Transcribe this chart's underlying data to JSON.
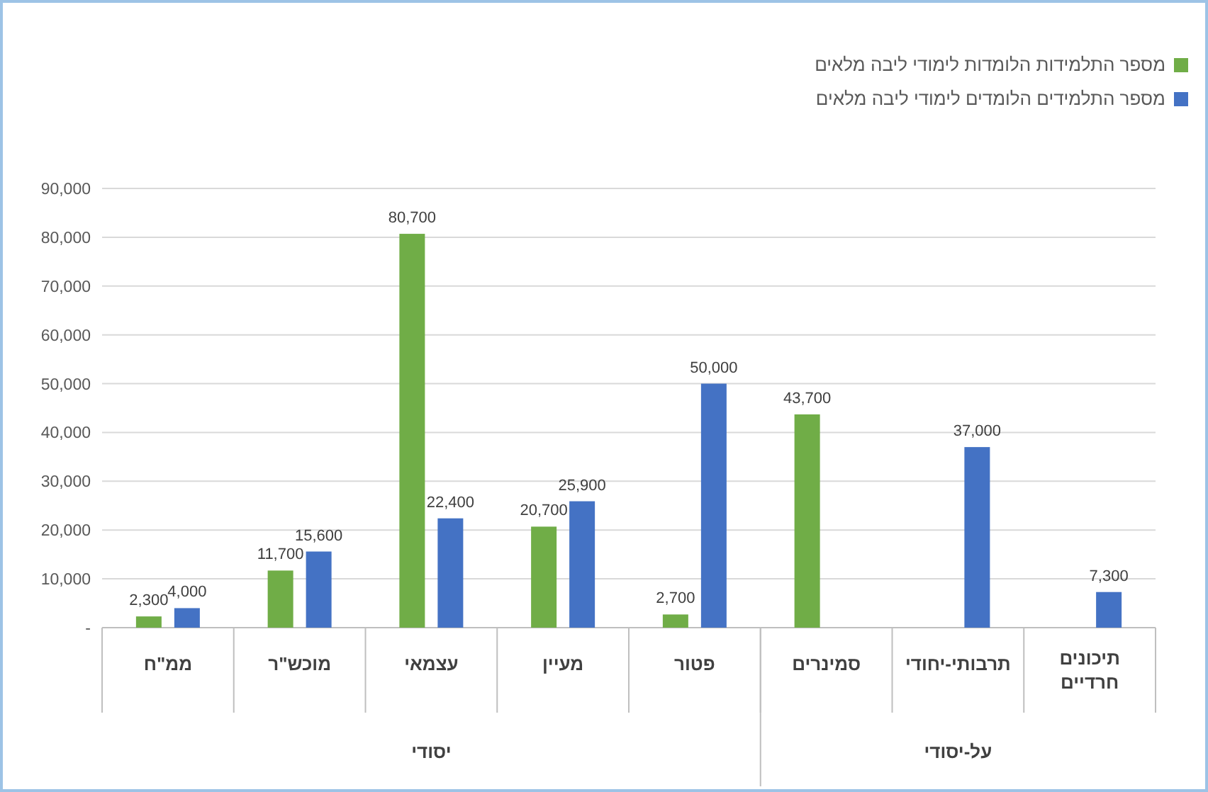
{
  "chart_data": {
    "type": "bar",
    "categories": [
      "ממ\"ח",
      "מוכש\"ר",
      "עצמאי",
      "מעיין",
      "פטור",
      "סמינרים",
      "תרבותי-יחודי",
      "תיכונים חרדיים"
    ],
    "series": [
      {
        "name": "מספר התלמידות הלומדות לימודי ליבה מלאים",
        "color": "#70ad47",
        "values": [
          2300,
          11700,
          80700,
          20700,
          2700,
          43700,
          null,
          null
        ],
        "value_labels": [
          "2,300",
          "11,700",
          "80,700",
          "20,700",
          "2,700",
          "43,700",
          null,
          null
        ]
      },
      {
        "name": "מספר התלמידים הלומדים לימודי ליבה מלאים",
        "color": "#4472c4",
        "values": [
          4000,
          15600,
          22400,
          25900,
          50000,
          null,
          37000,
          7300
        ],
        "value_labels": [
          "4,000",
          "15,600",
          "22,400",
          "25,900",
          "50,000",
          null,
          "37,000",
          "7,300"
        ]
      }
    ],
    "ylim": [
      0,
      90000
    ],
    "yticks": [
      {
        "value": 0,
        "label": "-"
      },
      {
        "value": 10000,
        "label": "10,000"
      },
      {
        "value": 20000,
        "label": "20,000"
      },
      {
        "value": 30000,
        "label": "30,000"
      },
      {
        "value": 40000,
        "label": "40,000"
      },
      {
        "value": 50000,
        "label": "50,000"
      },
      {
        "value": 60000,
        "label": "60,000"
      },
      {
        "value": 70000,
        "label": "70,000"
      },
      {
        "value": 80000,
        "label": "80,000"
      },
      {
        "value": 90000,
        "label": "90,000"
      }
    ],
    "grid": "y",
    "legend": "top right",
    "annotations": [
      "יסודי",
      "על-יסודי"
    ]
  }
}
